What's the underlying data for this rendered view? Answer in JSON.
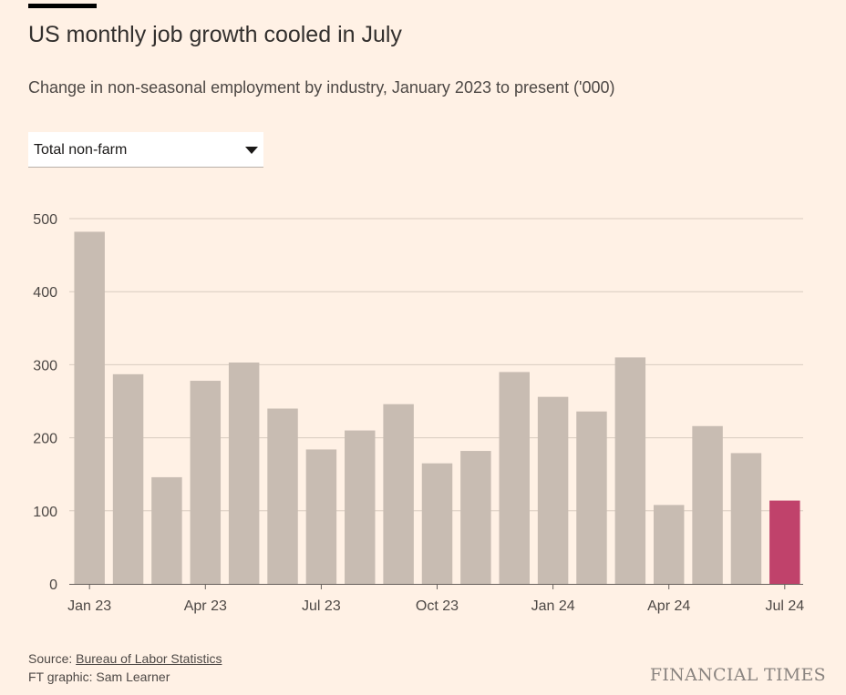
{
  "header": {
    "title": "US monthly job growth cooled in July",
    "subtitle": "Change in non-seasonal employment by industry, January 2023 to present ('000)"
  },
  "dropdown": {
    "selected": "Total non-farm"
  },
  "footer": {
    "source_prefix": "Source: ",
    "source_link": "Bureau of Labor Statistics",
    "credit": "FT graphic: Sam Learner",
    "logo": "FINANCIAL TIMES"
  },
  "colors": {
    "bar": "#c8bcb2",
    "highlight": "#c0426b",
    "grid": "#d8ccc0",
    "axis": "#66605c"
  },
  "chart_data": {
    "type": "bar",
    "title": "US monthly job growth cooled in July",
    "ylim": [
      0,
      500
    ],
    "yticks": [
      "0",
      "100",
      "200",
      "300",
      "400",
      "500"
    ],
    "grid": true,
    "categories": [
      "Jan 23",
      "Feb 23",
      "Mar 23",
      "Apr 23",
      "May 23",
      "Jun 23",
      "Jul 23",
      "Aug 23",
      "Sep 23",
      "Oct 23",
      "Nov 23",
      "Dec 23",
      "Jan 24",
      "Feb 24",
      "Mar 24",
      "Apr 24",
      "May 24",
      "Jun 24",
      "Jul 24"
    ],
    "xtick_labels": [
      "Jan 23",
      "Apr 23",
      "Jul 23",
      "Oct 23",
      "Jan 24",
      "Apr 24",
      "Jul 24"
    ],
    "xtick_indices": [
      0,
      3,
      6,
      9,
      12,
      15,
      18
    ],
    "values": [
      482,
      287,
      146,
      278,
      303,
      240,
      184,
      210,
      246,
      165,
      182,
      290,
      256,
      236,
      310,
      108,
      216,
      179,
      114
    ],
    "highlight_index": 18
  }
}
